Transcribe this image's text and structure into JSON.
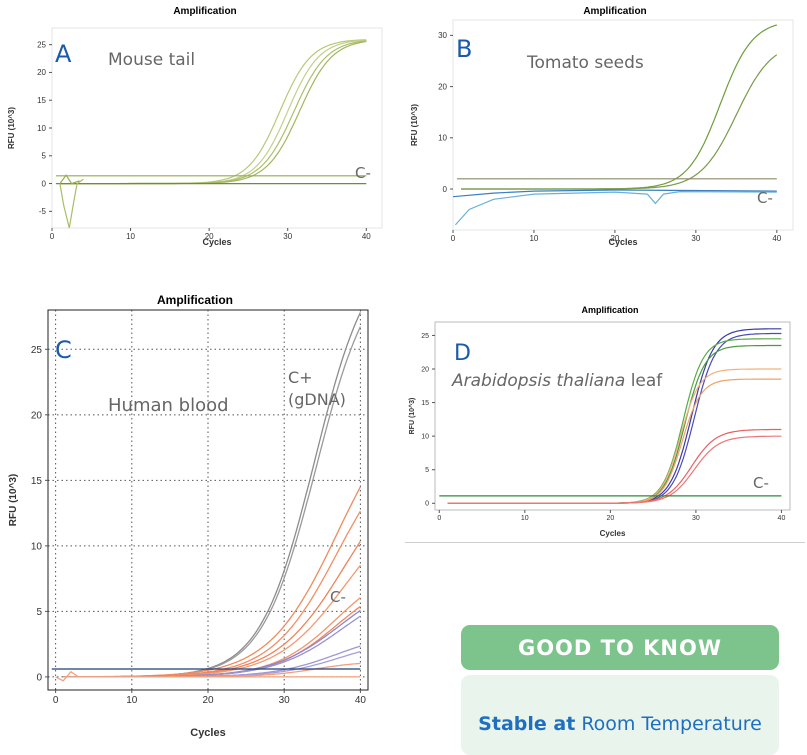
{
  "chart_data": [
    {
      "panel": "A",
      "type": "line",
      "title": "Amplification",
      "xlabel": "Cycles",
      "ylabel": "RFU (10^3)",
      "annotation": "Mouse tail",
      "neg_label": "C-",
      "xlim": [
        0,
        42
      ],
      "ylim": [
        -8,
        28
      ],
      "xticks": [
        0,
        10,
        20,
        30,
        40
      ],
      "yticks": [
        -5,
        0,
        5,
        10,
        15,
        20,
        25
      ],
      "grid": false,
      "series": [
        {
          "color": "#b7c978",
          "type": "sigmoid",
          "base": 0,
          "top": 26,
          "mid": 29,
          "k": 0.5
        },
        {
          "color": "#c4cf8a",
          "type": "sigmoid",
          "base": 0,
          "top": 26,
          "mid": 30,
          "k": 0.5
        },
        {
          "color": "#a9c06a",
          "type": "sigmoid",
          "base": 0,
          "top": 26,
          "mid": 30.8,
          "k": 0.48
        },
        {
          "color": "#9eb85e",
          "type": "sigmoid",
          "base": 0,
          "top": 26,
          "mid": 31.5,
          "k": 0.48
        },
        {
          "color": "#8fae4a",
          "type": "flat",
          "level": 1.4
        },
        {
          "color": "#6e8f30",
          "type": "flat",
          "level": 0
        },
        {
          "color": "#a8bd6b",
          "type": "points",
          "points": [
            [
              1,
              0
            ],
            [
              1.5,
              -4
            ],
            [
              2.2,
              -8
            ],
            [
              2.8,
              -3
            ],
            [
              3.2,
              0
            ],
            [
              4,
              0.8
            ]
          ]
        },
        {
          "color": "#95ad55",
          "type": "points",
          "points": [
            [
              1,
              0
            ],
            [
              1.8,
              1.5
            ],
            [
              2.5,
              0
            ],
            [
              3.5,
              0.5
            ]
          ]
        }
      ]
    },
    {
      "panel": "B",
      "type": "line",
      "title": "Amplification",
      "xlabel": "Cycles",
      "ylabel": "RFU (10^3)",
      "annotation": "Tomato seeds",
      "neg_label": "C-",
      "xlim": [
        0,
        42
      ],
      "ylim": [
        -8,
        33
      ],
      "xticks": [
        0,
        10,
        20,
        30,
        40
      ],
      "yticks": [
        0,
        10,
        20,
        30
      ],
      "grid": false,
      "series": [
        {
          "color": "#6e9c3a",
          "type": "sigmoid",
          "base": 0,
          "top": 33,
          "mid": 33,
          "k": 0.5
        },
        {
          "color": "#7a9a4c",
          "type": "sigmoid",
          "base": 0,
          "top": 29,
          "mid": 35,
          "k": 0.45
        },
        {
          "color": "#8a8a6a",
          "type": "flat",
          "level": 2
        },
        {
          "color": "#3b7fc1",
          "type": "points",
          "points": [
            [
              0,
              -1.5
            ],
            [
              5,
              -0.8
            ],
            [
              10,
              -0.4
            ],
            [
              20,
              -0.2
            ],
            [
              40,
              -0.4
            ]
          ]
        },
        {
          "color": "#6ab0d8",
          "type": "points",
          "points": [
            [
              0.3,
              -7
            ],
            [
              2,
              -4
            ],
            [
              5,
              -2
            ],
            [
              10,
              -1
            ],
            [
              20,
              -0.6
            ],
            [
              24,
              -1
            ],
            [
              25,
              -2.8
            ],
            [
              26,
              -1
            ],
            [
              28,
              -0.5
            ],
            [
              40,
              -0.6
            ]
          ]
        }
      ]
    },
    {
      "panel": "C",
      "type": "line",
      "title": "Amplification",
      "xlabel": "Cycles",
      "ylabel": "RFU (10^3)",
      "annotation": "Human blood",
      "pos_label_1": "C+",
      "pos_label_2": "(gDNA)",
      "neg_label": "C-",
      "xlim": [
        -1,
        41
      ],
      "ylim": [
        -1,
        28
      ],
      "xticks": [
        0,
        10,
        20,
        30,
        40
      ],
      "yticks": [
        0,
        5,
        10,
        15,
        20,
        25
      ],
      "grid": true,
      "series": [
        {
          "color": "#8c8c8c",
          "type": "sigmoid",
          "base": 0,
          "top": 33,
          "mid": 34,
          "k": 0.28
        },
        {
          "color": "#9a9a9a",
          "type": "sigmoid",
          "base": 0,
          "top": 32,
          "mid": 34.2,
          "k": 0.28
        },
        {
          "color": "#f08a5d",
          "type": "sigmoid",
          "base": 0,
          "top": 22,
          "mid": 37,
          "k": 0.22
        },
        {
          "color": "#f28e64",
          "type": "sigmoid",
          "base": 0,
          "top": 19,
          "mid": 37,
          "k": 0.23
        },
        {
          "color": "#ee8258",
          "type": "sigmoid",
          "base": 0,
          "top": 17,
          "mid": 38,
          "k": 0.22
        },
        {
          "color": "#f39a70",
          "type": "sigmoid",
          "base": 0,
          "top": 14,
          "mid": 38,
          "k": 0.22
        },
        {
          "color": "#f2956c",
          "type": "sigmoid",
          "base": 0,
          "top": 9,
          "mid": 37,
          "k": 0.24
        },
        {
          "color": "#ef8860",
          "type": "sigmoid",
          "base": 0,
          "top": 8,
          "mid": 37,
          "k": 0.24
        },
        {
          "color": "#8e86c8",
          "type": "sigmoid",
          "base": 0,
          "top": 8,
          "mid": 37.5,
          "k": 0.22
        },
        {
          "color": "#9a92d0",
          "type": "sigmoid",
          "base": 0,
          "top": 7.5,
          "mid": 37.8,
          "k": 0.22
        },
        {
          "color": "#9e96d4",
          "type": "sigmoid",
          "base": 0,
          "top": 3.5,
          "mid": 37,
          "k": 0.24
        },
        {
          "color": "#a79fd8",
          "type": "sigmoid",
          "base": 0,
          "top": 3,
          "mid": 37.5,
          "k": 0.24
        },
        {
          "color": "#f4a07a",
          "type": "sigmoid",
          "base": 0,
          "top": 1.2,
          "mid": 34,
          "k": 0.3
        },
        {
          "color": "#f4a07a",
          "type": "points",
          "points": [
            [
              0,
              0
            ],
            [
              1,
              -0.3
            ],
            [
              2,
              0.4
            ],
            [
              3,
              0
            ],
            [
              40,
              0
            ]
          ]
        },
        {
          "color": "#1f3f7a",
          "type": "flat",
          "level": 0.6
        }
      ]
    },
    {
      "panel": "D",
      "type": "line",
      "title": "Amplification",
      "xlabel": "Cycles",
      "ylabel": "RFU (10^3)",
      "annotation_italic": "Arabidopsis thaliana",
      "annotation_rest": "leaf",
      "neg_label": "C-",
      "xlim": [
        -0.5,
        41
      ],
      "ylim": [
        -1,
        27
      ],
      "xticks": [
        0,
        10,
        20,
        30,
        40
      ],
      "yticks": [
        0,
        5,
        10,
        15,
        20,
        25
      ],
      "grid": false,
      "series": [
        {
          "color": "#3a3aa8",
          "type": "sigmoid",
          "base": 0,
          "top": 26,
          "mid": 29.5,
          "k": 0.8
        },
        {
          "color": "#4a4ab8",
          "type": "sigmoid",
          "base": 0,
          "top": 25.3,
          "mid": 29.8,
          "k": 0.8
        },
        {
          "color": "#5aaa48",
          "type": "sigmoid",
          "base": 0,
          "top": 24.5,
          "mid": 28.5,
          "k": 0.85
        },
        {
          "color": "#4c9a3c",
          "type": "sigmoid",
          "base": 0,
          "top": 23.5,
          "mid": 28.7,
          "k": 0.85
        },
        {
          "color": "#f3b07a",
          "type": "sigmoid",
          "base": 0,
          "top": 20,
          "mid": 28.2,
          "k": 0.9
        },
        {
          "color": "#f0a068",
          "type": "sigmoid",
          "base": 0,
          "top": 18.5,
          "mid": 28.4,
          "k": 0.9
        },
        {
          "color": "#e86060",
          "type": "sigmoid",
          "base": 0,
          "top": 11,
          "mid": 29.5,
          "k": 0.7
        },
        {
          "color": "#ee7676",
          "type": "sigmoid",
          "base": 0,
          "top": 10,
          "mid": 29.8,
          "k": 0.7
        },
        {
          "color": "#2e8a3a",
          "type": "flat",
          "level": 1.1
        }
      ]
    }
  ],
  "info": {
    "heading": "GOOD TO KNOW",
    "bold": "Stable at",
    "rest": "Room Temperature"
  }
}
